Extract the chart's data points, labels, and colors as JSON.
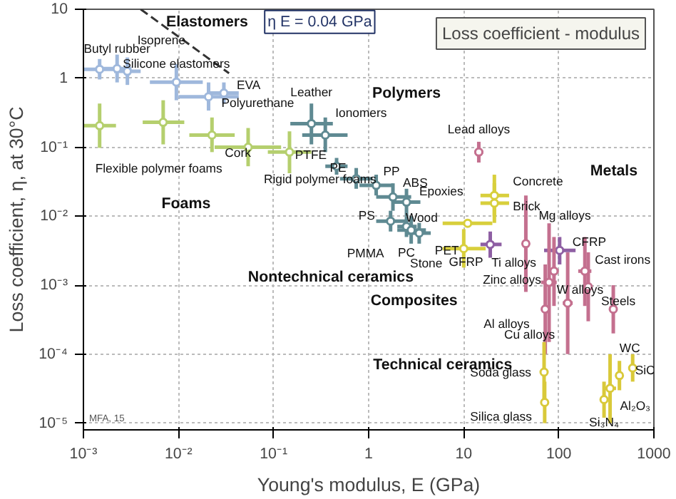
{
  "chart_data": {
    "type": "scatter",
    "title": "Loss coefficient - modulus",
    "xlabel": "Young's modulus, E (GPa)",
    "ylabel": "Loss coefficient, η, at 30°C",
    "log": "xy",
    "grid": true,
    "marker": "circle",
    "xlim": [
      0.001,
      1000
    ],
    "ylim": [
      8e-06,
      10
    ],
    "xticks": [
      {
        "value": 0.001,
        "label": "10⁻³"
      },
      {
        "value": 0.01,
        "label": "10⁻²"
      },
      {
        "value": 0.1,
        "label": "10⁻¹"
      },
      1,
      10,
      100,
      1000
    ],
    "yticks": [
      {
        "value": 1e-05,
        "label": "10⁻⁵"
      },
      {
        "value": 0.0001,
        "label": "10⁻⁴"
      },
      {
        "value": 0.001,
        "label": "10⁻³"
      },
      {
        "value": 0.01,
        "label": "10⁻²"
      },
      {
        "value": 0.1,
        "label": "10⁻¹"
      },
      1,
      10
    ],
    "series": [
      {
        "type": "line",
        "name": "η E = 0.04 GPa",
        "color": "#333333",
        "line_style": "dashed",
        "marker": "none",
        "x": [
          0.004,
          0.034
        ],
        "values": [
          10,
          1.18
        ]
      },
      {
        "color": "#9fb8dc",
        "x": [
          0.00148,
          0.00226,
          0.0029,
          0.0095,
          0.0207,
          0.03
        ],
        "values": [
          1.35,
          1.38,
          1.26,
          0.88,
          0.54,
          0.61
        ],
        "xerrors": [
          [
            0.001,
            0.0022
          ],
          [
            0.0016,
            0.0032
          ],
          [
            0.0021,
            0.004
          ],
          [
            0.005,
            0.018
          ],
          [
            0.01,
            0.043
          ],
          [
            0.021,
            0.043
          ]
        ],
        "errors": [
          [
            0.96,
            1.9
          ],
          [
            0.87,
            2.2
          ],
          [
            0.8,
            2.0
          ],
          [
            0.48,
            1.6
          ],
          [
            0.34,
            0.87
          ],
          [
            0.43,
            0.87
          ]
        ]
      },
      {
        "color": "#b5cf6e",
        "x": [
          0.00148,
          0.0069,
          0.0225,
          0.054,
          0.147
        ],
        "values": [
          0.205,
          0.23,
          0.15,
          0.1,
          0.085
        ],
        "xerrors": [
          [
            0.001,
            0.0022
          ],
          [
            0.0042,
            0.0115
          ],
          [
            0.013,
            0.039
          ],
          [
            0.024,
            0.12
          ],
          [
            0.087,
            0.25
          ]
        ],
        "errors": [
          [
            0.098,
            0.43
          ],
          [
            0.11,
            0.48
          ],
          [
            0.085,
            0.27
          ],
          [
            0.053,
            0.19
          ],
          [
            0.042,
            0.17
          ]
        ]
      },
      {
        "color": "#5f8a92",
        "x": [
          0.25,
          0.35,
          0.46,
          0.74,
          1.2,
          1.8,
          2.5,
          1.7,
          2.5,
          2.8,
          3.4
        ],
        "values": [
          0.22,
          0.15,
          0.053,
          0.035,
          0.028,
          0.019,
          0.016,
          0.0085,
          0.0071,
          0.0063,
          0.0057
        ],
        "xerrors": [
          [
            0.15,
            0.42
          ],
          [
            0.2,
            0.6
          ],
          [
            0.35,
            0.6
          ],
          [
            0.5,
            1.1
          ],
          [
            0.8,
            1.8
          ],
          [
            1.2,
            2.8
          ],
          [
            1.8,
            3.5
          ],
          [
            1.2,
            2.5
          ],
          [
            2,
            3.2
          ],
          [
            2,
            4
          ],
          [
            2.5,
            4.5
          ]
        ],
        "errors": [
          [
            0.11,
            0.43
          ],
          [
            0.085,
            0.27
          ],
          [
            0.04,
            0.07
          ],
          [
            0.025,
            0.05
          ],
          [
            0.02,
            0.04
          ],
          [
            0.012,
            0.03
          ],
          [
            0.01,
            0.025
          ],
          [
            0.006,
            0.012
          ],
          [
            0.005,
            0.01
          ],
          [
            0.004,
            0.01
          ],
          [
            0.004,
            0.008
          ]
        ]
      },
      {
        "color": "#d8cf3c",
        "x": [
          10,
          11,
          21,
          21
        ],
        "values": [
          0.0034,
          0.0079,
          0.02,
          0.0155
        ],
        "xerrors": [
          [
            6,
            17
          ],
          [
            6,
            20
          ],
          [
            15,
            30
          ],
          [
            15,
            30
          ]
        ],
        "errors": [
          [
            0.0018,
            0.0065
          ],
          [
            0.007,
            0.009
          ],
          [
            0.01,
            0.04
          ],
          [
            0.008,
            0.03
          ]
        ]
      },
      {
        "color": "#8e5fa3",
        "x": [
          19,
          102
        ],
        "values": [
          0.0039,
          0.0032
        ],
        "xerrors": [
          [
            15,
            25
          ],
          [
            70,
            150
          ]
        ],
        "errors": [
          [
            0.0025,
            0.006
          ],
          [
            0.002,
            0.005
          ]
        ]
      },
      {
        "color": "#c4708f",
        "x": [
          14.4,
          45,
          79,
          89,
          72,
          124,
          188,
          204,
          374
        ],
        "values": [
          0.085,
          0.004,
          0.0011,
          0.0016,
          0.00045,
          0.00055,
          0.0016,
          0.00095,
          0.00045
        ],
        "xerrors": [
          [
            13,
            16
          ],
          [
            42,
            48
          ],
          [
            65,
            95
          ],
          [
            80,
            100
          ],
          [
            65,
            80
          ],
          [
            110,
            140
          ],
          [
            160,
            220
          ],
          [
            190,
            220
          ],
          [
            350,
            400
          ]
        ],
        "errors": [
          [
            0.06,
            0.12
          ],
          [
            0.0008,
            0.02
          ],
          [
            0.00015,
            0.0079
          ],
          [
            0.0005,
            0.005
          ],
          [
            0.0001,
            0.002
          ],
          [
            0.0001,
            0.003
          ],
          [
            0.0005,
            0.005
          ],
          [
            0.0003,
            0.003
          ],
          [
            0.0002,
            0.001
          ]
        ]
      },
      {
        "color": "#d9c93a",
        "x": [
          70,
          71,
          346,
          299,
          434,
          598
        ],
        "values": [
          5.5e-05,
          2e-05,
          3.2e-05,
          2.2e-05,
          4.9e-05,
          6.3e-05
        ],
        "xerrors": [
          [
            65,
            75
          ],
          [
            68,
            75
          ],
          [
            300,
            400
          ],
          [
            280,
            320
          ],
          [
            400,
            470
          ],
          [
            550,
            650
          ]
        ],
        "errors": [
          [
            2e-05,
            0.00015
          ],
          [
            1e-05,
            4e-05
          ],
          [
            1e-05,
            0.0001
          ],
          [
            1.2e-05,
            4e-05
          ],
          [
            3e-05,
            8e-05
          ],
          [
            4e-05,
            0.0001
          ]
        ]
      }
    ],
    "annotations": [
      "Elastomers",
      {
        "text": "Butyl rubber",
        "x": 0.00226,
        "y": 1.38
      },
      {
        "text": "Isoprene",
        "x": 0.0029,
        "y": 1.26
      },
      {
        "text": "Silicone elastomers",
        "x": 0.0095,
        "y": 0.88
      },
      {
        "text": "Polyurethane",
        "x": 0.0207,
        "y": 0.54
      },
      {
        "text": "EVA",
        "x": 0.03,
        "y": 0.61
      },
      {
        "text": "Leather",
        "x": 0.25,
        "y": 0.22
      },
      {
        "text": "Ionomers",
        "x": 0.35,
        "y": 0.15
      },
      "Polymers",
      {
        "text": "PTFE",
        "x": 0.46,
        "y": 0.053
      },
      {
        "text": "PE",
        "x": 0.74,
        "y": 0.035
      },
      {
        "text": "PP",
        "x": 1.2,
        "y": 0.028
      },
      {
        "text": "ABS",
        "x": 1.8,
        "y": 0.019
      },
      {
        "text": "Epoxies",
        "x": 2.5,
        "y": 0.016
      },
      {
        "text": "Wood",
        "x": 11,
        "y": 0.0079
      },
      {
        "text": "Lead alloys",
        "x": 14.4,
        "y": 0.085
      },
      {
        "text": "Concrete",
        "x": 21,
        "y": 0.02
      },
      {
        "text": "Brick",
        "x": 21,
        "y": 0.0155
      },
      {
        "text": "Mg alloys",
        "x": 45,
        "y": 0.004
      },
      "Metals",
      {
        "text": "Ti alloys",
        "x": 79,
        "y": 0.0011
      },
      {
        "text": "CFRP",
        "x": 102,
        "y": 0.0032
      },
      {
        "text": "Cast irons",
        "x": 188,
        "y": 0.0016
      },
      {
        "text": "Steels",
        "x": 204,
        "y": 0.00095
      },
      {
        "text": "W alloys",
        "x": 374,
        "y": 0.00045
      },
      {
        "text": "Al₂O₃",
        "x": 346,
        "y": 3.2e-05
      },
      {
        "text": "WC",
        "x": 598,
        "y": 6.3e-05
      },
      {
        "text": "SiC",
        "x": 434,
        "y": 4.9e-05
      },
      {
        "text": "Si₃N₄",
        "x": 299,
        "y": 2.2e-05
      },
      {
        "text": "Silica glass",
        "x": 71,
        "y": 2e-05
      },
      {
        "text": "Soda glass",
        "x": 70,
        "y": 5.5e-05
      },
      "Technical ceramics",
      {
        "text": "Cu alloys",
        "x": 124,
        "y": 0.00055
      },
      {
        "text": "Al alloys",
        "x": 72,
        "y": 0.00045
      },
      {
        "text": "Zinc alloys",
        "x": 89,
        "y": 0.0016
      },
      "Composites",
      "Nontechnical ceramics",
      {
        "text": "Stone",
        "x": 10,
        "y": 0.0034
      },
      {
        "text": "GFRP",
        "x": 19,
        "y": 0.0039
      },
      {
        "text": "PS",
        "x": 1.7,
        "y": 0.0085
      },
      {
        "text": "PC",
        "x": 2.5,
        "y": 0.0071
      },
      {
        "text": "PMMA",
        "x": 2.8,
        "y": 0.0063
      },
      {
        "text": "PET",
        "x": 3.4,
        "y": 0.0057
      },
      {
        "text": "Flexible polymer foams",
        "x": 0.00148,
        "y": 0.205
      },
      {
        "text": "Cork",
        "x": 0.0225,
        "y": 0.15
      },
      {
        "text": "Rigid polymer foams",
        "x": 0.054,
        "y": 0.1
      },
      "Foams",
      "MFA, 15"
    ]
  }
}
